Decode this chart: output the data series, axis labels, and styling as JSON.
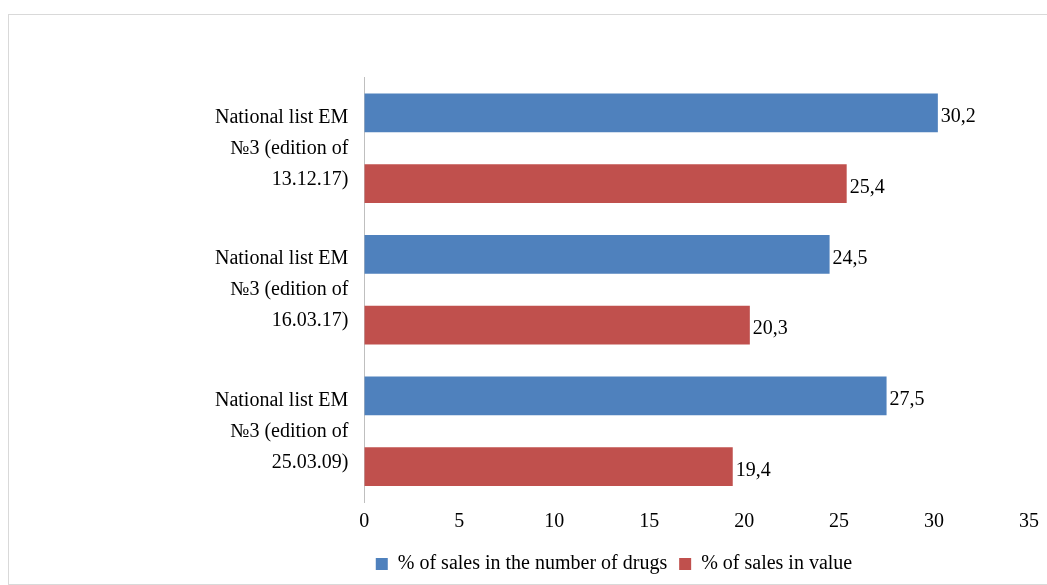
{
  "chart_data": {
    "type": "bar",
    "orientation": "horizontal",
    "categories": [
      "National list EM №3 (edition of 13.12.17)",
      "National list EM №3 (edition of 16.03.17)",
      "National list EM №3 (edition of 25.03.09)"
    ],
    "series": [
      {
        "name": "% of sales in the number of drugs",
        "color": "#4f81bd",
        "values": [
          30.2,
          24.5,
          27.5
        ],
        "value_labels": [
          "30,2",
          "24,5",
          "27,5"
        ]
      },
      {
        "name": "% of sales in value",
        "color": "#c0504d",
        "values": [
          25.4,
          20.3,
          19.4
        ],
        "value_labels": [
          "25,4",
          "20,3",
          "19,4"
        ]
      }
    ],
    "xlim": [
      0,
      35
    ],
    "xticks": [
      0,
      5,
      10,
      15,
      20,
      25,
      30,
      35
    ],
    "grid": false,
    "legend": "bottom"
  }
}
